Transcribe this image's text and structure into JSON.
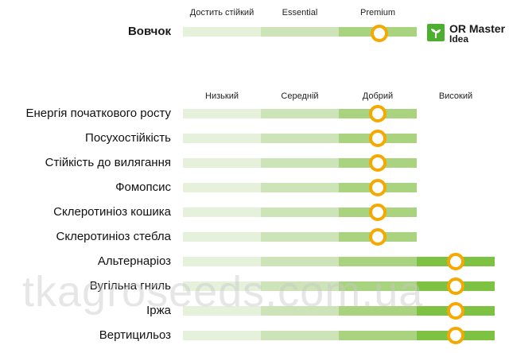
{
  "top_section": {
    "headers": [
      "Достить стійкий",
      "Essential",
      "Premium"
    ],
    "title": "Вовчок",
    "level": 3
  },
  "logo": {
    "icon": "seedling-icon",
    "line1": "OR Master",
    "line2": "Idea"
  },
  "rating_section": {
    "headers": [
      "Низький",
      "Середній",
      "Добрий",
      "Високий"
    ],
    "rows": [
      {
        "label": "Енергія початкового росту",
        "level": 3
      },
      {
        "label": "Посухостійкість",
        "level": 3
      },
      {
        "label": "Стійкість до вилягання",
        "level": 3
      },
      {
        "label": "Фомопсис",
        "level": 3
      },
      {
        "label": "Склеротиніоз кошика",
        "level": 3
      },
      {
        "label": "Склеротиніоз стебла",
        "level": 3
      },
      {
        "label": "Альтернаріоз",
        "level": 4
      },
      {
        "label": "Вугільна гниль",
        "level": 4
      },
      {
        "label": "Іржа",
        "level": 4
      },
      {
        "label": "Вертицильоз",
        "level": 4
      }
    ]
  },
  "watermark": "tkagroseeds.com.ua",
  "colors": {
    "seg1": "#e6f1dc",
    "seg2": "#cde4b8",
    "seg3": "#a9d37f",
    "seg4": "#7dc242",
    "marker": "#f5a800"
  }
}
